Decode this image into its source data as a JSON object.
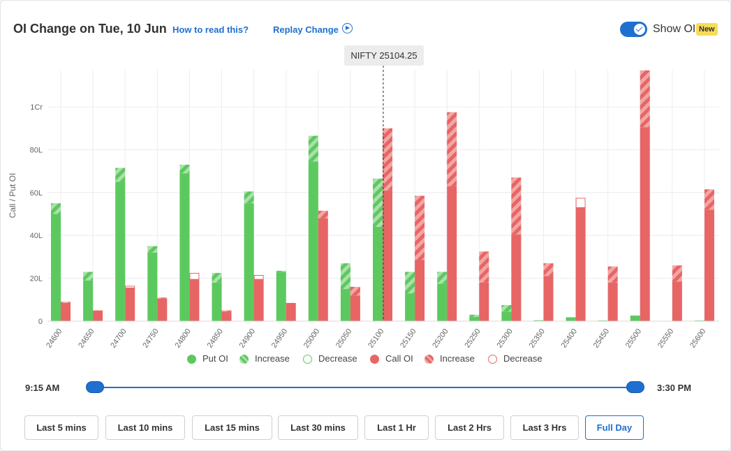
{
  "header": {
    "title": "OI Change on Tue, 10 Jun",
    "how_to_read": "How to read this?",
    "replay": "Replay Change",
    "show_oi_label": "Show OI",
    "new_badge": "New",
    "show_oi_enabled": true
  },
  "spot_label": "NIFTY 25104.25",
  "legend": {
    "items": [
      {
        "label": "Put OI",
        "kind": "put-solid"
      },
      {
        "label": "Increase",
        "kind": "put-increase"
      },
      {
        "label": "Decrease",
        "kind": "put-decrease"
      },
      {
        "label": "Call OI",
        "kind": "call-solid"
      },
      {
        "label": "Increase",
        "kind": "call-increase"
      },
      {
        "label": "Decrease",
        "kind": "call-decrease"
      }
    ]
  },
  "colors": {
    "put": "#5cc95f",
    "put_stripe": "#a9e1aa",
    "call": "#e86565",
    "call_stripe": "#f3a6a6",
    "accent": "#1f6fd1",
    "grid": "#ececec"
  },
  "time_range": {
    "start": "9:15 AM",
    "end": "3:30 PM"
  },
  "time_buttons": [
    {
      "label": "Last 5 mins",
      "active": false
    },
    {
      "label": "Last 10 mins",
      "active": false
    },
    {
      "label": "Last 15 mins",
      "active": false
    },
    {
      "label": "Last 30 mins",
      "active": false
    },
    {
      "label": "Last 1 Hr",
      "active": false
    },
    {
      "label": "Last 2 Hrs",
      "active": false
    },
    {
      "label": "Last 3 Hrs",
      "active": false
    },
    {
      "label": "Full Day",
      "active": true
    }
  ],
  "chart_data": {
    "type": "bar",
    "ylabel": "Call / Put OI",
    "y_ticks": [
      {
        "value": 0,
        "label": "0"
      },
      {
        "value": 20,
        "label": "20L"
      },
      {
        "value": 40,
        "label": "40L"
      },
      {
        "value": 60,
        "label": "60L"
      },
      {
        "value": 80,
        "label": "80L"
      },
      {
        "value": 100,
        "label": "1Cr"
      }
    ],
    "ylim": [
      0,
      117
    ],
    "units": "lakh",
    "spot_strike_position": 25100,
    "categories": [
      "24600",
      "24650",
      "24700",
      "24750",
      "24800",
      "24850",
      "24900",
      "24950",
      "25000",
      "25050",
      "25100",
      "25150",
      "25200",
      "25250",
      "25300",
      "25350",
      "25400",
      "25450",
      "25500",
      "25550",
      "25600"
    ],
    "series": [
      {
        "name": "Put OI",
        "base": [
          50,
          19,
          65,
          32,
          69,
          18,
          55,
          23,
          74.5,
          15,
          44,
          13,
          17.5,
          2,
          4.5,
          0.4,
          1.8,
          0.3,
          2.6,
          0,
          0.3
        ],
        "change": [
          5,
          4,
          6.5,
          3,
          4,
          4.5,
          5.5,
          0.5,
          12,
          12,
          22.5,
          10,
          5.5,
          1,
          3,
          0,
          0,
          0,
          0,
          0,
          0
        ]
      },
      {
        "name": "Call OI",
        "base": [
          8.5,
          5,
          15.5,
          10.5,
          19.5,
          4.5,
          19.5,
          8.5,
          48,
          12,
          61,
          28.5,
          63,
          18,
          40.5,
          21,
          53,
          18,
          90.5,
          18.5,
          52
        ],
        "change": [
          0.5,
          0,
          1,
          0.5,
          3,
          0.5,
          2,
          0,
          3.5,
          4,
          29,
          30,
          34.5,
          14.5,
          26.5,
          6,
          4.5,
          7.5,
          26.5,
          7.5,
          9.5
        ],
        "change_type": [
          "increase",
          "increase",
          "decrease",
          "increase",
          "decrease",
          "increase",
          "decrease",
          "increase",
          "increase",
          "increase",
          "increase",
          "increase",
          "increase",
          "increase",
          "increase",
          "increase",
          "decrease",
          "increase",
          "increase",
          "increase",
          "increase"
        ]
      }
    ]
  }
}
